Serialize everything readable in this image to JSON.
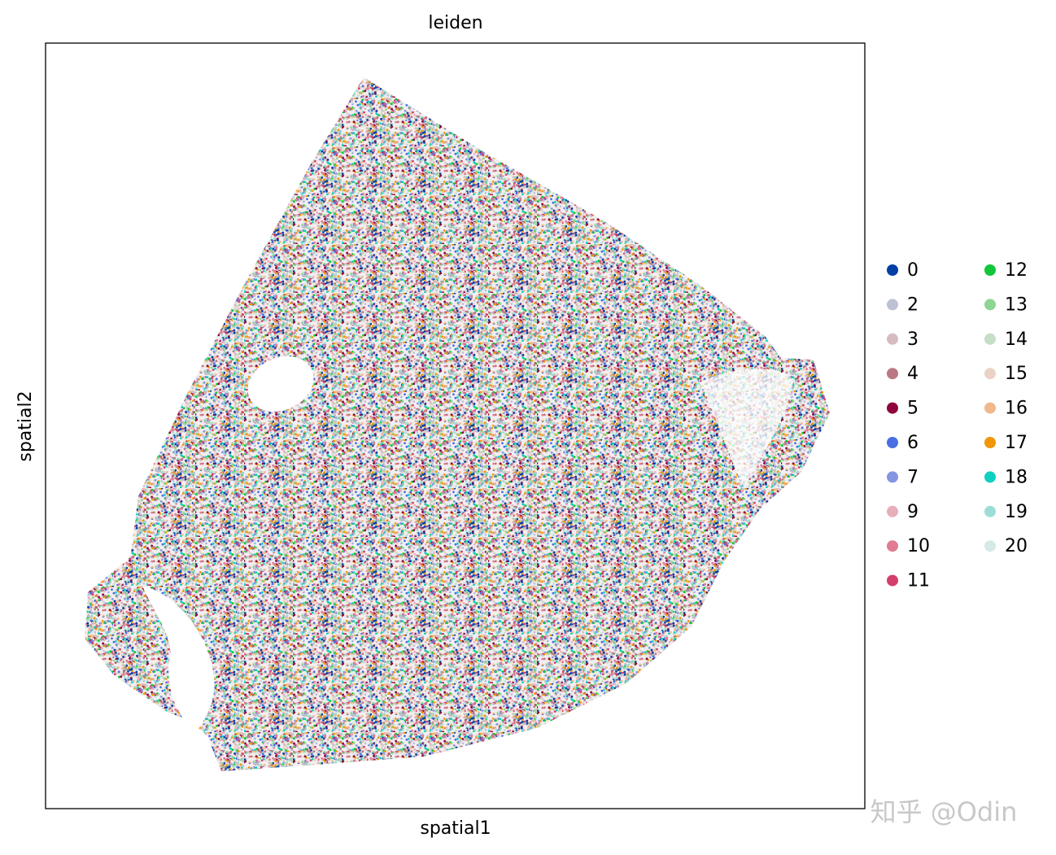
{
  "chart_data": {
    "type": "scatter",
    "title": "leiden",
    "x_label": "spatial1",
    "y_label": "spatial2",
    "series": [
      {
        "name": "0",
        "color": "#023fa5"
      },
      {
        "name": "2",
        "color": "#bec1d4"
      },
      {
        "name": "3",
        "color": "#d6bcc0"
      },
      {
        "name": "4",
        "color": "#bb7784"
      },
      {
        "name": "5",
        "color": "#8e063b"
      },
      {
        "name": "6",
        "color": "#4a6fe3"
      },
      {
        "name": "7",
        "color": "#8595e1"
      },
      {
        "name": "9",
        "color": "#e6afb9"
      },
      {
        "name": "10",
        "color": "#e07b91"
      },
      {
        "name": "11",
        "color": "#d33f6a"
      },
      {
        "name": "12",
        "color": "#11c638"
      },
      {
        "name": "13",
        "color": "#8dd593"
      },
      {
        "name": "14",
        "color": "#c6dec7"
      },
      {
        "name": "15",
        "color": "#ead3c6"
      },
      {
        "name": "16",
        "color": "#f0b98d"
      },
      {
        "name": "17",
        "color": "#ef9708"
      },
      {
        "name": "18",
        "color": "#0fcfc0"
      },
      {
        "name": "19",
        "color": "#9cded6"
      },
      {
        "name": "20",
        "color": "#d5eae7"
      }
    ]
  },
  "watermark": "知乎 @Odin"
}
